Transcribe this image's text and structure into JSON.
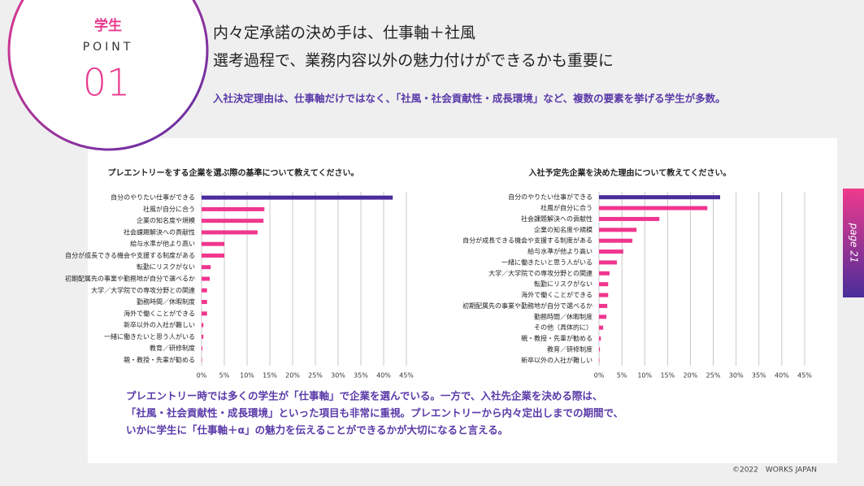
{
  "header": {
    "badge": "学生",
    "point": "POINT",
    "number": "01",
    "title_lines": [
      "内々定承諾の決め手は、仕事軸＋社風",
      "選考過程で、業務内容以外の魅力付けができるかも重要に"
    ],
    "subtitle": "入社決定理由は、仕事軸だけではなく、「社風・社会貢献性・成長環境」など、複数の要素を挙げる学生が多数。"
  },
  "chart_data": [
    {
      "type": "bar",
      "orientation": "horizontal",
      "title": "プレエントリーをする企業を選ぶ際の基準について教えてください。",
      "categories": [
        "自分のやりたい仕事ができる",
        "社風が自分に合う",
        "企業の知名度や規模",
        "社会課題解決への貢献性",
        "給与水準が他より高い",
        "自分が成長できる機会や支援する制度がある",
        "転勤にリスクがない",
        "初期配属先の事業や勤務地が自分で選べるか",
        "大学／大学院での専攻分野との関連",
        "勤務時間／休暇制度",
        "海外で働くことができる",
        "新卒以外の入社が難しい",
        "一緒に働きたいと思う人がいる",
        "教育／研修制度",
        "親・教授・先輩が勧める"
      ],
      "values": [
        42,
        13.8,
        13.6,
        12.3,
        5,
        5,
        2,
        1.8,
        1.2,
        1.2,
        1.2,
        0.4,
        0.4,
        0.2,
        0.1
      ],
      "colors": [
        "#4b2c9c",
        "#f0368f",
        "#f0368f",
        "#f0368f",
        "#f0368f",
        "#f0368f",
        "#f0368f",
        "#f0368f",
        "#f0368f",
        "#f0368f",
        "#f0368f",
        "#f0368f",
        "#f0368f",
        "#f0368f",
        "#f0368f"
      ],
      "xlim": [
        0,
        45
      ],
      "xticks": [
        {
          "value": 0,
          "label": "0%"
        },
        {
          "value": 5,
          "label": "5%"
        },
        {
          "value": 10,
          "label": "10%"
        },
        {
          "value": 15,
          "label": "15%"
        },
        {
          "value": 20,
          "label": "20%"
        },
        {
          "value": 25,
          "label": "25%"
        },
        {
          "value": 30,
          "label": "30%"
        },
        {
          "value": 35,
          "label": "35%"
        },
        {
          "value": 40,
          "label": "40%"
        },
        {
          "value": 45,
          "label": "45%"
        }
      ],
      "grid": true
    },
    {
      "type": "bar",
      "orientation": "horizontal",
      "title": "入社予定先企業を決めた理由について教えてください。",
      "categories": [
        "自分のやりたい仕事ができる",
        "社風が自分に合う",
        "社会課題解決への貢献性",
        "企業の知名度や規模",
        "自分が成長できる機会や支援する制度がある",
        "給与水準が他より高い",
        "一緒に働きたいと思う人がいる",
        "大学／大学院での専攻分野との関連",
        "転勤にリスクがない",
        "海外で働くことができる",
        "初期配属先の事業や勤務地が自分で選べるか",
        "勤務時間／休暇制度",
        "その他（具体的に）",
        "親・教授・先輩が勧める",
        "教育／研修制度",
        "新卒以外の入社が難しい"
      ],
      "values": [
        26.5,
        23.7,
        13.2,
        8.2,
        7.3,
        5.3,
        3.9,
        2.3,
        2,
        2,
        1.8,
        1.6,
        0.9,
        0.4,
        0.2,
        0.1
      ],
      "colors": [
        "#4b2c9c",
        "#f0368f",
        "#f0368f",
        "#f0368f",
        "#f0368f",
        "#f0368f",
        "#f0368f",
        "#f0368f",
        "#f0368f",
        "#f0368f",
        "#f0368f",
        "#f0368f",
        "#f0368f",
        "#f0368f",
        "#f0368f",
        "#f0368f"
      ],
      "xlim": [
        0,
        45
      ],
      "xticks": [
        {
          "value": 0,
          "label": "0%"
        },
        {
          "value": 5,
          "label": "5%"
        },
        {
          "value": 10,
          "label": "10%"
        },
        {
          "value": 15,
          "label": "15%"
        },
        {
          "value": 20,
          "label": "20%"
        },
        {
          "value": 25,
          "label": "25%"
        },
        {
          "value": 30,
          "label": "30%"
        },
        {
          "value": 35,
          "label": "35%"
        },
        {
          "value": 40,
          "label": "40%"
        },
        {
          "value": 45,
          "label": "45%"
        }
      ],
      "grid": true
    }
  ],
  "conclusion": [
    "プレエントリー時では多くの学生が「仕事軸」で企業を選んでいる。一方で、入社先企業を決める際は、",
    "「社風・社会貢献性・成長環境」といった項目も非常に重視。プレエントリーから内々定出しまでの期間で、",
    "いかに学生に「仕事軸＋α」の魅力を伝えることができるかが大切になると言える。"
  ],
  "page_tab": "page 21",
  "footer": "©2022　WORKS JAPAN"
}
